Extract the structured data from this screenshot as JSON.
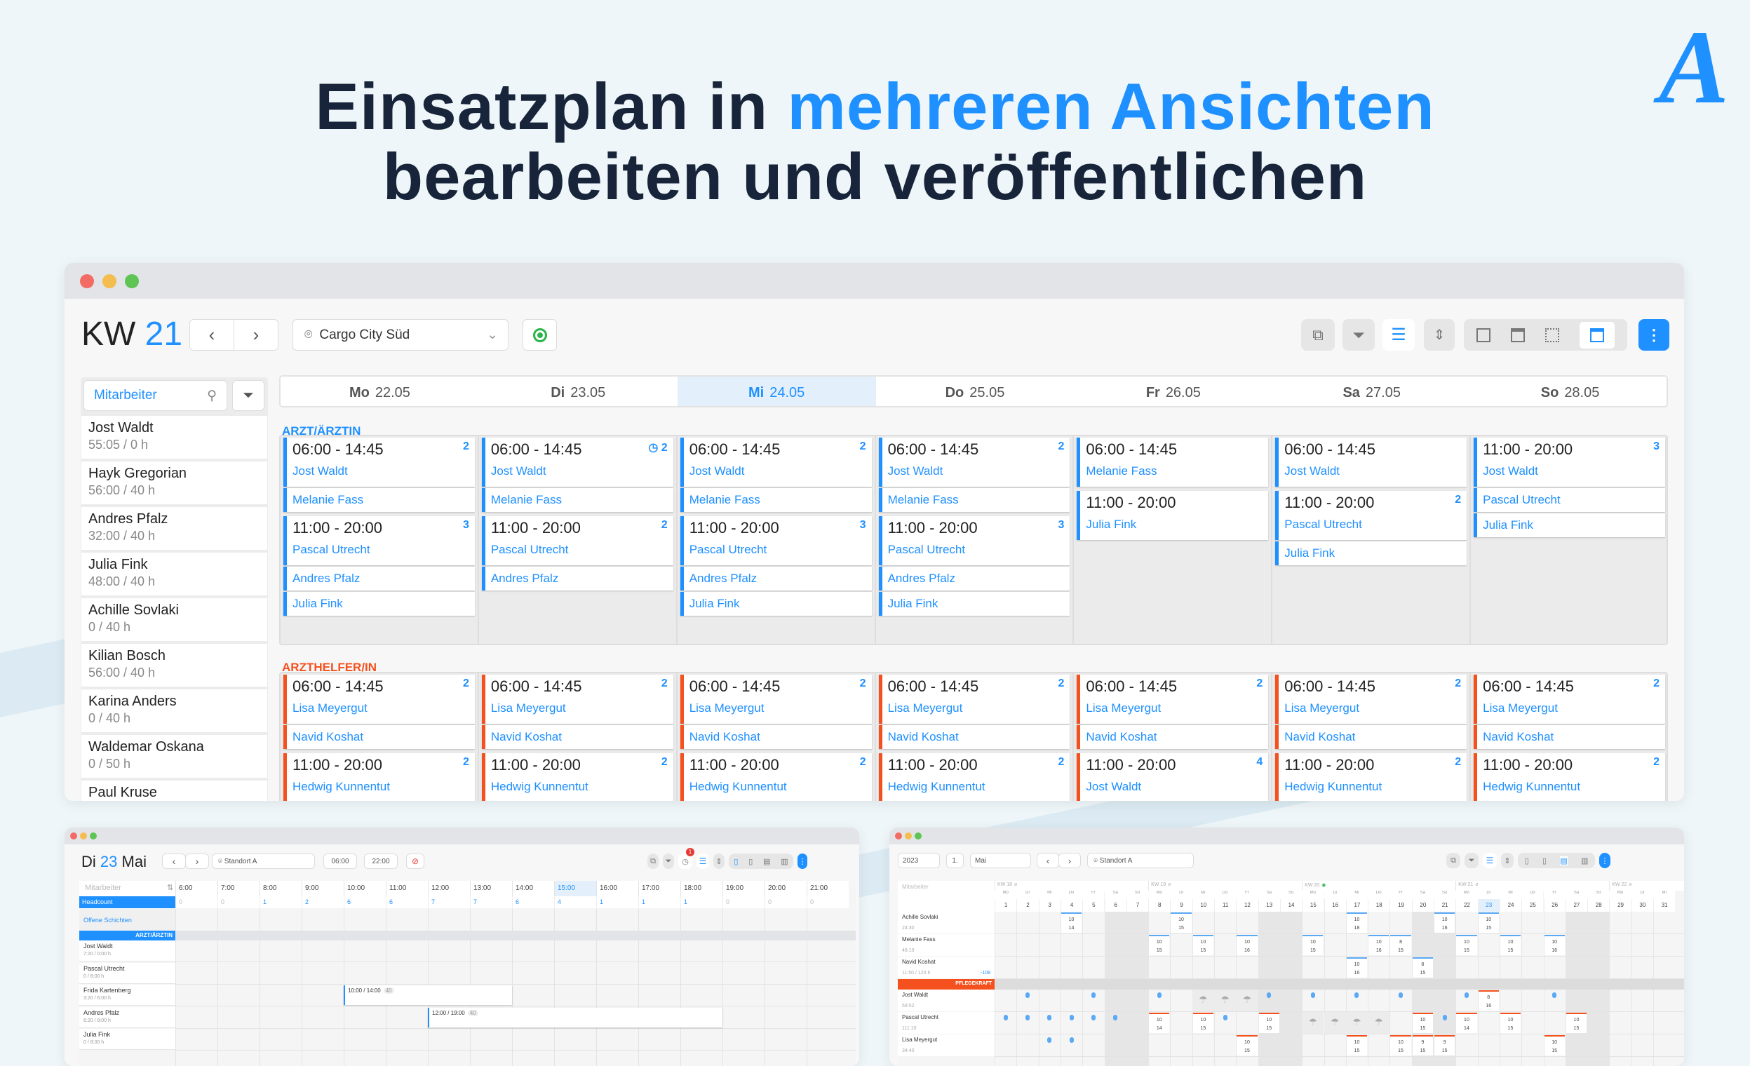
{
  "headline": {
    "part1": "Einsatzplan in ",
    "highlight": "mehreren Ansichten",
    "line2": "bearbeiten und veröffentlichen"
  },
  "logo": {
    "text": "A"
  },
  "colors": {
    "accent": "#1e90ff",
    "doctor": "#1e90ff",
    "assistant": "#f4511e",
    "visible": "#2bb54a"
  },
  "week_view": {
    "kw_label": "KW",
    "kw_number": "21",
    "location": "Cargo City Süd",
    "icons": [
      "copy-icon",
      "filter-icon",
      "list-icon",
      "compress-icon",
      "day-view-icon",
      "week-view-icon",
      "month-view-icon",
      "board-view-icon",
      "more-icon"
    ],
    "search_placeholder": "Mitarbeiter",
    "employees": [
      {
        "name": "Jost Waldt",
        "hours": "55:05 / 0 h"
      },
      {
        "name": "Hayk Gregorian",
        "hours": "56:00 / 40 h"
      },
      {
        "name": "Andres Pfalz",
        "hours": "32:00 / 40 h"
      },
      {
        "name": "Julia Fink",
        "hours": "48:00 / 40 h"
      },
      {
        "name": "Achille Sovlaki",
        "hours": "0 / 40 h"
      },
      {
        "name": "Kilian Bosch",
        "hours": "56:00 / 40 h"
      },
      {
        "name": "Karina Anders",
        "hours": "0 / 40 h"
      },
      {
        "name": "Waldemar Oskana",
        "hours": "0 / 50 h"
      },
      {
        "name": "Paul Kruse",
        "hours": ""
      }
    ],
    "days": [
      {
        "dow": "Mo",
        "date": "22.05",
        "active": false
      },
      {
        "dow": "Di",
        "date": "23.05",
        "active": false
      },
      {
        "dow": "Mi",
        "date": "24.05",
        "active": true
      },
      {
        "dow": "Do",
        "date": "25.05",
        "active": false
      },
      {
        "dow": "Fr",
        "date": "26.05",
        "active": false
      },
      {
        "dow": "Sa",
        "date": "27.05",
        "active": false
      },
      {
        "dow": "So",
        "date": "28.05",
        "active": false
      }
    ],
    "groups": [
      {
        "label": "ARZT/ÄRZTIN",
        "color": "#1e90ff",
        "columns": [
          [
            {
              "time": "06:00 - 14:45",
              "count": "2",
              "people": [
                "Jost Waldt",
                "Melanie Fass"
              ]
            },
            {
              "time": "11:00 - 20:00",
              "count": "3",
              "people": [
                "Pascal Utrecht",
                "Andres Pfalz",
                "Julia Fink"
              ]
            }
          ],
          [
            {
              "time": "06:00 - 14:45",
              "count": "2",
              "clock": true,
              "people": [
                "Jost Waldt",
                "Melanie Fass"
              ]
            },
            {
              "time": "11:00 - 20:00",
              "count": "2",
              "people": [
                "Pascal Utrecht",
                "Andres Pfalz"
              ]
            }
          ],
          [
            {
              "time": "06:00 - 14:45",
              "count": "2",
              "people": [
                "Jost Waldt",
                "Melanie Fass"
              ]
            },
            {
              "time": "11:00 - 20:00",
              "count": "3",
              "people": [
                "Pascal Utrecht",
                "Andres Pfalz",
                "Julia Fink"
              ]
            }
          ],
          [
            {
              "time": "06:00 - 14:45",
              "count": "2",
              "people": [
                "Jost Waldt",
                "Melanie Fass"
              ]
            },
            {
              "time": "11:00 - 20:00",
              "count": "3",
              "people": [
                "Pascal Utrecht",
                "Andres Pfalz",
                "Julia Fink"
              ]
            }
          ],
          [
            {
              "time": "06:00 - 14:45",
              "count": "",
              "people": [
                "Melanie Fass"
              ]
            },
            {
              "time": "11:00 - 20:00",
              "count": "",
              "people": [
                "Julia Fink"
              ]
            }
          ],
          [
            {
              "time": "06:00 - 14:45",
              "count": "",
              "people": [
                "Jost Waldt"
              ]
            },
            {
              "time": "11:00 - 20:00",
              "count": "2",
              "people": [
                "Pascal Utrecht",
                "Julia Fink"
              ]
            }
          ],
          [
            {
              "time": "11:00 - 20:00",
              "count": "3",
              "people": [
                "Jost Waldt",
                "Pascal Utrecht",
                "Julia Fink"
              ]
            }
          ]
        ]
      },
      {
        "label": "ARZTHELFER/IN",
        "color": "#f4511e",
        "columns": [
          [
            {
              "time": "06:00 - 14:45",
              "count": "2",
              "people": [
                "Lisa Meyergut",
                "Navid Koshat"
              ]
            },
            {
              "time": "11:00 - 20:00",
              "count": "2",
              "people": [
                "Hedwig Kunnentut"
              ]
            }
          ],
          [
            {
              "time": "06:00 - 14:45",
              "count": "2",
              "people": [
                "Lisa Meyergut",
                "Navid Koshat"
              ]
            },
            {
              "time": "11:00 - 20:00",
              "count": "2",
              "people": [
                "Hedwig Kunnentut"
              ]
            }
          ],
          [
            {
              "time": "06:00 - 14:45",
              "count": "2",
              "people": [
                "Lisa Meyergut",
                "Navid Koshat"
              ]
            },
            {
              "time": "11:00 - 20:00",
              "count": "2",
              "people": [
                "Hedwig Kunnentut"
              ]
            }
          ],
          [
            {
              "time": "06:00 - 14:45",
              "count": "2",
              "people": [
                "Lisa Meyergut",
                "Navid Koshat"
              ]
            },
            {
              "time": "11:00 - 20:00",
              "count": "2",
              "people": [
                "Hedwig Kunnentut"
              ]
            }
          ],
          [
            {
              "time": "06:00 - 14:45",
              "count": "2",
              "people": [
                "Lisa Meyergut",
                "Navid Koshat"
              ]
            },
            {
              "time": "11:00 - 20:00",
              "count": "4",
              "people": [
                "Jost Waldt"
              ]
            }
          ],
          [
            {
              "time": "06:00 - 14:45",
              "count": "2",
              "people": [
                "Lisa Meyergut",
                "Navid Koshat"
              ]
            },
            {
              "time": "11:00 - 20:00",
              "count": "2",
              "people": [
                "Hedwig Kunnentut"
              ]
            }
          ],
          [
            {
              "time": "06:00 - 14:45",
              "count": "2",
              "people": [
                "Lisa Meyergut",
                "Navid Koshat"
              ]
            },
            {
              "time": "11:00 - 20:00",
              "count": "2",
              "people": [
                "Hedwig Kunnentut"
              ]
            }
          ]
        ]
      }
    ]
  },
  "day_view": {
    "title_dow": "Di",
    "title_day": "23",
    "title_month": "Mai",
    "location": "Standort A",
    "from": "06:00",
    "to": "22:00",
    "badge": "1",
    "search_placeholder": "Mitarbeiter",
    "headcount_label": "Headcount",
    "open_shifts_label": "Offene Schichten",
    "group_label": "ARZT/ÄRZTIN",
    "hours": [
      "6:00",
      "7:00",
      "8:00",
      "9:00",
      "10:00",
      "11:00",
      "12:00",
      "13:00",
      "14:00",
      "15:00",
      "16:00",
      "17:00",
      "18:00",
      "19:00",
      "20:00",
      "21:00"
    ],
    "current_hour": "15:00",
    "headcount": [
      "0",
      "0",
      "1",
      "2",
      "6",
      "6",
      "7",
      "7",
      "6",
      "4",
      "1",
      "1",
      "1",
      "0",
      "0",
      "0"
    ],
    "rows": [
      {
        "name": "Jost Waldt",
        "hours": "7:20 / 0:00 h",
        "shifts": []
      },
      {
        "name": "Pascal Utrecht",
        "hours": "0 / 8:00 h",
        "shifts": []
      },
      {
        "name": "Frida Kartenberg",
        "hours": "3:20 / 6:00 h",
        "shifts": [
          {
            "start": 10,
            "end": 14,
            "label": "10:00 / 14:00",
            "badge": "40"
          }
        ]
      },
      {
        "name": "Andres Pfalz",
        "hours": "6:20 / 8:00 h",
        "shifts": [
          {
            "start": 12,
            "end": 19,
            "label": "12:00 / 19:00",
            "badge": "40"
          }
        ]
      },
      {
        "name": "Julia Fink",
        "hours": "0 / 8:00 h",
        "shifts": []
      }
    ]
  },
  "month_view": {
    "year": "2023",
    "day": "1.",
    "month": "Mai",
    "location": "Standort A",
    "search_placeholder": "Mitarbeiter",
    "weeks": [
      {
        "label": "KW 18",
        "start": 1
      },
      {
        "label": "KW 19",
        "start": 8
      },
      {
        "label": "KW 20",
        "start": 15,
        "published": true
      },
      {
        "label": "KW 21",
        "start": 22
      },
      {
        "label": "KW 22",
        "start": 29
      }
    ],
    "dows": [
      "Mo",
      "Di",
      "Mi",
      "Do",
      "Fr",
      "Sa",
      "So"
    ],
    "days_in_month": 31,
    "today": 23,
    "group2_label": "PFLEGEKRAFT",
    "rows": [
      {
        "name": "Achille Sovlaki",
        "hours": "24:30",
        "group": 1,
        "cells": {
          "4": [
            "10",
            "14"
          ],
          "9": [
            "10",
            "15"
          ],
          "17": [
            "10",
            "18"
          ],
          "21": [
            "10",
            "16"
          ],
          "23": [
            "10",
            "15"
          ]
        }
      },
      {
        "name": "Melanie Fass",
        "hours": "46:10",
        "group": 1,
        "cells": {
          "8": [
            "10",
            "15"
          ],
          "10": [
            "10",
            "15"
          ],
          "12": [
            "10",
            "16"
          ],
          "15": [
            "10",
            "15"
          ],
          "18": [
            "10",
            "16"
          ],
          "19": [
            "8",
            "15"
          ],
          "22": [
            "10",
            "15"
          ],
          "24": [
            "10",
            "15"
          ],
          "26": [
            "10",
            "16"
          ]
        }
      },
      {
        "name": "Navid Koshat",
        "hours": "11:50 / 120 h",
        "extra": "-108",
        "group": 1,
        "cells": {
          "17": [
            "10",
            "16"
          ],
          "20": [
            "8",
            "15"
          ]
        }
      },
      {
        "name": "Jost Waldt",
        "hours": "59:52",
        "group": 2,
        "dots": [
          2,
          5,
          8,
          13,
          15,
          17,
          19,
          22,
          26
        ],
        "vacation": [
          10,
          11,
          12
        ],
        "cells": {
          "23": [
            "8",
            "16"
          ]
        }
      },
      {
        "name": "Pascal Utrecht",
        "hours": "111:10",
        "group": 2,
        "dots": [
          1,
          2,
          3,
          4,
          5,
          6,
          11,
          21
        ],
        "vacation": [
          15,
          16,
          17,
          18
        ],
        "cells": {
          "8": [
            "10",
            "14"
          ],
          "10": [
            "10",
            "15"
          ],
          "13": [
            "10",
            "15"
          ],
          "20": [
            "10",
            "15"
          ],
          "22": [
            "10",
            "14"
          ],
          "24": [
            "10",
            "15"
          ],
          "27": [
            "10",
            "15"
          ]
        }
      },
      {
        "name": "Lisa Meyergut",
        "hours": "34:40",
        "group": 2,
        "dots": [
          3,
          4
        ],
        "cells": {
          "12": [
            "10",
            "15"
          ],
          "17": [
            "10",
            "15"
          ],
          "19": [
            "10",
            "15"
          ],
          "20": [
            "9",
            "15"
          ],
          "21": [
            "9",
            "15"
          ],
          "26": [
            "10",
            "15"
          ]
        }
      }
    ]
  }
}
